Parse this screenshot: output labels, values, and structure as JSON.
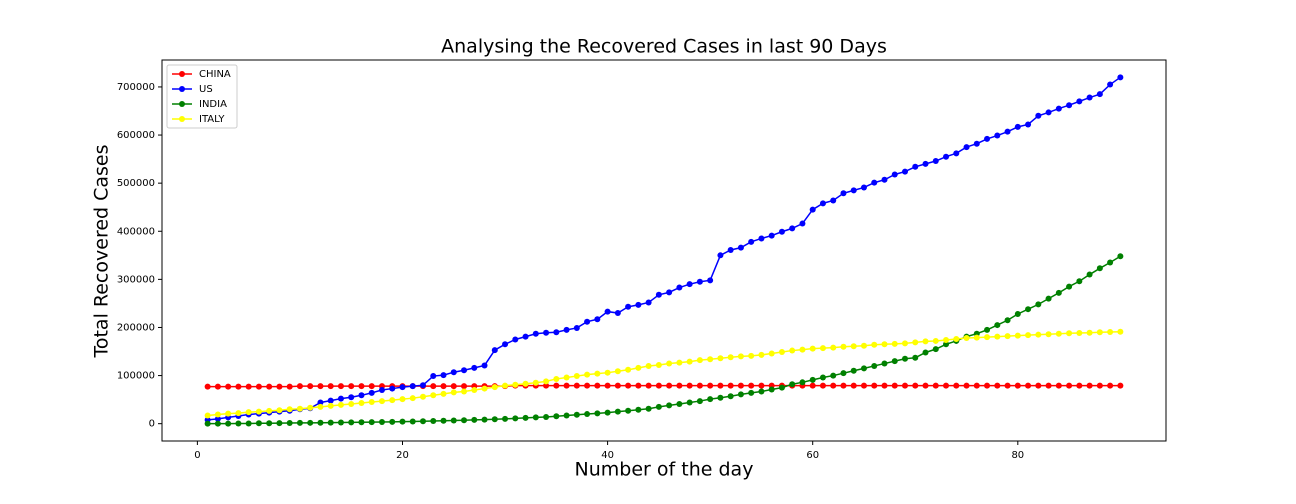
{
  "chart_data": {
    "type": "line",
    "title": "Analysing the Recovered Cases in last 90 Days",
    "xlabel": "Number of the day",
    "ylabel": "Total Recovered Cases",
    "x": [
      1,
      2,
      3,
      4,
      5,
      6,
      7,
      8,
      9,
      10,
      11,
      12,
      13,
      14,
      15,
      16,
      17,
      18,
      19,
      20,
      21,
      22,
      23,
      24,
      25,
      26,
      27,
      28,
      29,
      30,
      31,
      32,
      33,
      34,
      35,
      36,
      37,
      38,
      39,
      40,
      41,
      42,
      43,
      44,
      45,
      46,
      47,
      48,
      49,
      50,
      51,
      52,
      53,
      54,
      55,
      56,
      57,
      58,
      59,
      60,
      61,
      62,
      63,
      64,
      65,
      66,
      67,
      68,
      69,
      70,
      71,
      72,
      73,
      74,
      75,
      76,
      77,
      78,
      79,
      80,
      81,
      82,
      83,
      84,
      85,
      86,
      87,
      88,
      89,
      90
    ],
    "series": [
      {
        "name": "CHINA",
        "color": "#ff0000",
        "values": [
          77000,
          77000,
          77000,
          77000,
          77000,
          77000,
          77000,
          77000,
          77000,
          78000,
          78000,
          78000,
          78000,
          78000,
          78000,
          78000,
          78000,
          78000,
          78000,
          78000,
          78000,
          78000,
          78000,
          78000,
          78000,
          78000,
          78000,
          78000,
          78000,
          78000,
          79000,
          79000,
          79000,
          79000,
          79000,
          79000,
          79000,
          79000,
          79000,
          79000,
          79000,
          79000,
          79000,
          79000,
          79000,
          79000,
          79000,
          79000,
          79000,
          79000,
          79000,
          79000,
          79000,
          79000,
          79000,
          79000,
          79000,
          79000,
          79000,
          79000,
          79000,
          79000,
          79000,
          79000,
          79000,
          79000,
          79000,
          79000,
          79000,
          79000,
          79000,
          79000,
          79000,
          79000,
          79000,
          79000,
          79000,
          79000,
          79000,
          79000,
          79000,
          79000,
          79000,
          79000,
          79000,
          79000,
          79000,
          79000,
          79000,
          79000
        ]
      },
      {
        "name": "US",
        "color": "#0000ff",
        "values": [
          8000,
          10000,
          13000,
          16000,
          19000,
          21000,
          23000,
          25000,
          27000,
          30000,
          32000,
          44000,
          48000,
          52000,
          55000,
          59000,
          64000,
          70000,
          73000,
          76000,
          78000,
          80000,
          99000,
          101000,
          107000,
          111000,
          116000,
          121000,
          153000,
          165000,
          175000,
          181000,
          187000,
          189000,
          190000,
          195000,
          199000,
          212000,
          217000,
          233000,
          230000,
          243000,
          247000,
          252000,
          268000,
          273000,
          283000,
          290000,
          295000,
          298000,
          350000,
          361000,
          366000,
          378000,
          385000,
          391000,
          399000,
          406000,
          416000,
          445000,
          458000,
          464000,
          479000,
          485000,
          491000,
          501000,
          507000,
          518000,
          524000,
          534000,
          540000,
          546000,
          555000,
          562000,
          575000,
          582000,
          592000,
          599000,
          607000,
          617000,
          622000,
          640000,
          647000,
          655000,
          662000,
          670000,
          678000,
          685000,
          705000,
          720000
        ]
      },
      {
        "name": "INDIA",
        "color": "#008000",
        "values": [
          0,
          100,
          200,
          300,
          500,
          800,
          1000,
          1200,
          1400,
          1600,
          1800,
          2000,
          2200,
          2400,
          2600,
          2900,
          3200,
          3500,
          3800,
          4200,
          4600,
          5000,
          5500,
          6000,
          6500,
          7200,
          7800,
          8500,
          9200,
          10000,
          11000,
          12000,
          13000,
          14000,
          15500,
          17000,
          18500,
          20000,
          21500,
          23000,
          25000,
          27000,
          29000,
          31000,
          35000,
          38000,
          41000,
          44000,
          47000,
          51000,
          54000,
          57000,
          61000,
          64000,
          67000,
          71000,
          75000,
          82000,
          86000,
          91000,
          96000,
          100000,
          105000,
          110000,
          115000,
          120000,
          125000,
          130000,
          135000,
          137000,
          148000,
          155000,
          165000,
          172000,
          181000,
          187000,
          195000,
          205000,
          215000,
          228000,
          238000,
          248000,
          260000,
          272000,
          285000,
          296000,
          310000,
          323000,
          335000,
          348000
        ]
      },
      {
        "name": "ITALY",
        "color": "#ffff00",
        "values": [
          17000,
          19000,
          21000,
          22000,
          24000,
          25000,
          26500,
          28000,
          30000,
          31000,
          33000,
          35000,
          37000,
          39000,
          41000,
          43000,
          45000,
          47000,
          49000,
          51000,
          53000,
          56000,
          59000,
          62000,
          65000,
          67000,
          70000,
          73000,
          76000,
          79000,
          81000,
          83000,
          85000,
          88000,
          93000,
          96000,
          99000,
          102000,
          104000,
          106000,
          109000,
          112000,
          116000,
          120000,
          122000,
          125000,
          127000,
          129000,
          132000,
          134000,
          136000,
          138000,
          140000,
          141000,
          143000,
          146000,
          149000,
          152000,
          154000,
          156000,
          157000,
          158000,
          160000,
          161000,
          162000,
          164000,
          165000,
          166000,
          167000,
          169000,
          171000,
          172000,
          174000,
          176000,
          178000,
          179000,
          180000,
          181000,
          182000,
          183000,
          184000,
          185000,
          186000,
          187000,
          188000,
          188500,
          189000,
          190000,
          190500,
          191000
        ]
      }
    ],
    "xlim": [
      -3.45,
      94.45
    ],
    "xticks": [
      0,
      20,
      40,
      60,
      80
    ],
    "ylim": [
      -36000,
      756000
    ],
    "yticks": [
      0,
      100000,
      200000,
      300000,
      400000,
      500000,
      600000,
      700000
    ],
    "grid": false,
    "legend": "upper left"
  }
}
